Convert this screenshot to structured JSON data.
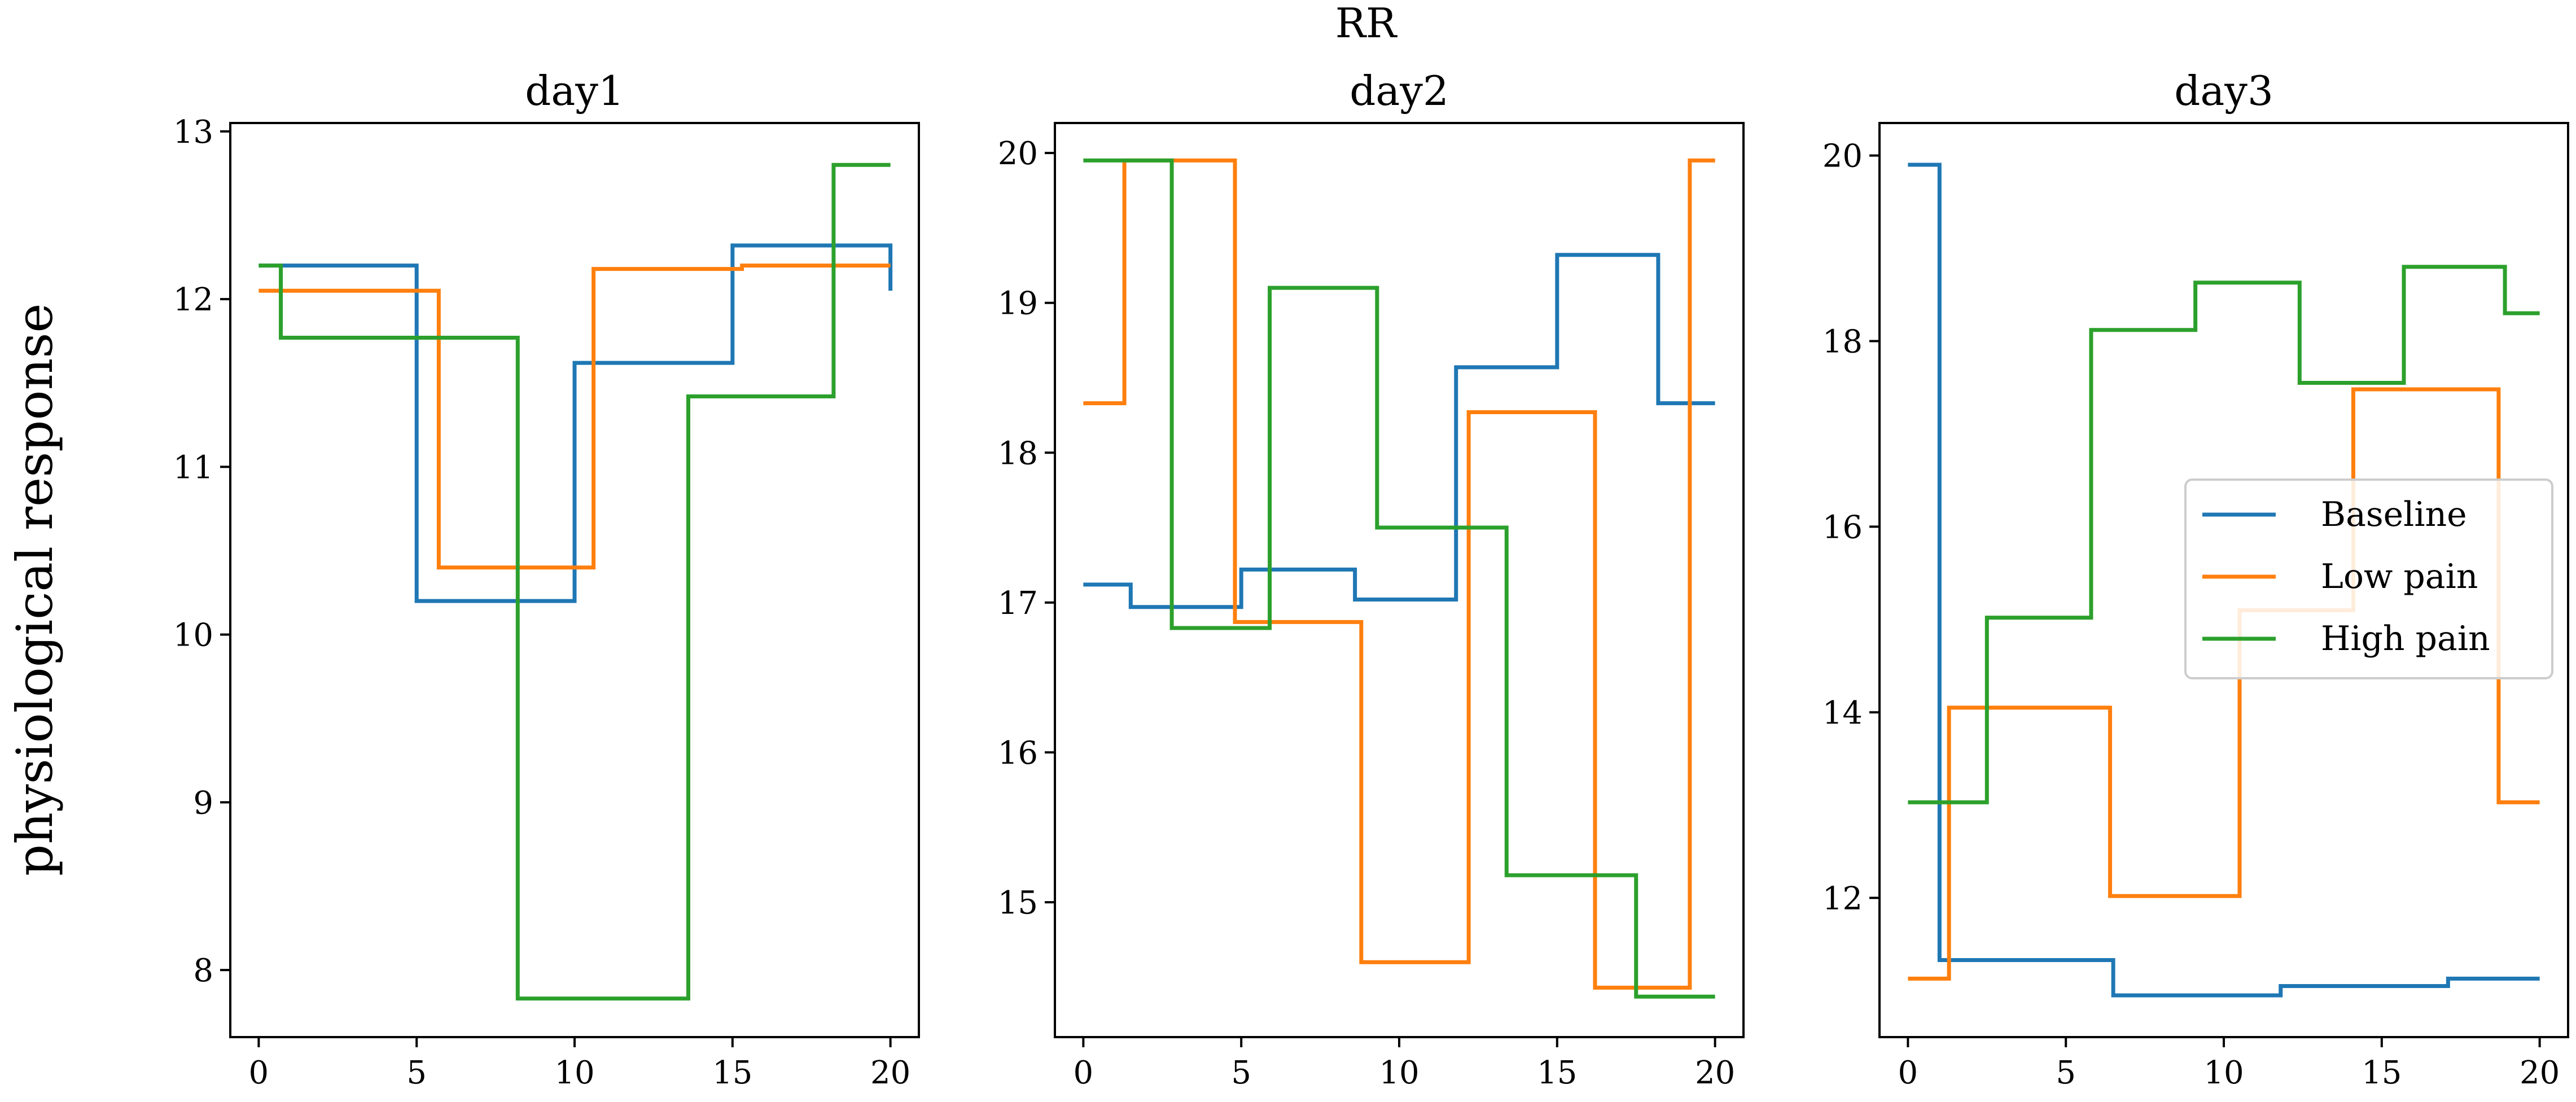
{
  "figure": {
    "title": "RR",
    "ylabel": "physiological response"
  },
  "chart_data": [
    {
      "type": "line",
      "drawstyle": "steps-post",
      "title": "day1",
      "xlabel": "",
      "ylabel": "physiological response",
      "xlim": [
        -0.9,
        20.9
      ],
      "ylim": [
        7.6,
        13.05
      ],
      "xticks": [
        0,
        5,
        10,
        15,
        20
      ],
      "yticks": [
        8,
        9,
        10,
        11,
        12,
        13
      ],
      "grid": false,
      "series": [
        {
          "name": "Baseline",
          "color": "#1f77b4",
          "x": [
            0,
            5,
            10,
            15,
            20
          ],
          "y": [
            12.2,
            10.2,
            11.62,
            12.32,
            12.05
          ]
        },
        {
          "name": "Low pain",
          "color": "#ff7f0e",
          "x": [
            0,
            5.7,
            10.6,
            15.3,
            20
          ],
          "y": [
            12.05,
            10.4,
            12.18,
            12.2,
            12.2
          ]
        },
        {
          "name": "High pain",
          "color": "#2ca02c",
          "x": [
            0,
            0.7,
            8.2,
            13.6,
            18.2,
            20
          ],
          "y": [
            12.2,
            11.77,
            7.83,
            11.42,
            12.8,
            12.8
          ]
        }
      ]
    },
    {
      "type": "line",
      "drawstyle": "steps-post",
      "title": "day2",
      "xlabel": "",
      "ylabel": "",
      "xlim": [
        -0.9,
        20.9
      ],
      "ylim": [
        14.1,
        20.2
      ],
      "xticks": [
        0,
        5,
        10,
        15,
        20
      ],
      "yticks": [
        15,
        16,
        17,
        18,
        19,
        20
      ],
      "grid": false,
      "series": [
        {
          "name": "Baseline",
          "color": "#1f77b4",
          "x": [
            0,
            1.5,
            5,
            8.6,
            11.8,
            15,
            18.2,
            20
          ],
          "y": [
            17.12,
            16.97,
            17.22,
            17.02,
            18.57,
            19.32,
            18.33,
            18.33
          ]
        },
        {
          "name": "Low pain",
          "color": "#ff7f0e",
          "x": [
            0,
            1.3,
            4.8,
            8.8,
            12.2,
            16.2,
            19.2,
            20
          ],
          "y": [
            18.33,
            19.95,
            16.87,
            14.6,
            18.27,
            14.43,
            19.95,
            19.95
          ]
        },
        {
          "name": "High pain",
          "color": "#2ca02c",
          "x": [
            0,
            2.8,
            5.9,
            9.3,
            13.4,
            17.5,
            20
          ],
          "y": [
            19.95,
            16.83,
            19.1,
            17.5,
            15.18,
            14.37,
            14.37
          ]
        }
      ]
    },
    {
      "type": "line",
      "drawstyle": "steps-post",
      "title": "day3",
      "xlabel": "",
      "ylabel": "",
      "xlim": [
        -0.9,
        20.9
      ],
      "ylim": [
        10.5,
        20.35
      ],
      "xticks": [
        0,
        5,
        10,
        15,
        20
      ],
      "yticks": [
        12,
        14,
        16,
        18,
        20
      ],
      "grid": false,
      "legend": {
        "entries": [
          "Baseline",
          "Low pain",
          "High pain"
        ],
        "location": "center-right"
      },
      "series": [
        {
          "name": "Baseline",
          "color": "#1f77b4",
          "x": [
            0,
            1.0,
            6.5,
            11.8,
            17.1,
            20
          ],
          "y": [
            19.9,
            11.33,
            10.95,
            11.05,
            11.13,
            11.13
          ]
        },
        {
          "name": "Low pain",
          "color": "#ff7f0e",
          "x": [
            0,
            1.3,
            6.4,
            10.5,
            14.1,
            18.7,
            20
          ],
          "y": [
            11.13,
            14.05,
            12.02,
            15.1,
            17.48,
            13.03,
            13.03
          ]
        },
        {
          "name": "High pain",
          "color": "#2ca02c",
          "x": [
            0,
            2.5,
            5.8,
            9.1,
            12.4,
            15.7,
            18.9,
            20
          ],
          "y": [
            13.03,
            15.02,
            18.12,
            18.63,
            17.55,
            18.8,
            18.3,
            18.3
          ]
        }
      ]
    }
  ]
}
